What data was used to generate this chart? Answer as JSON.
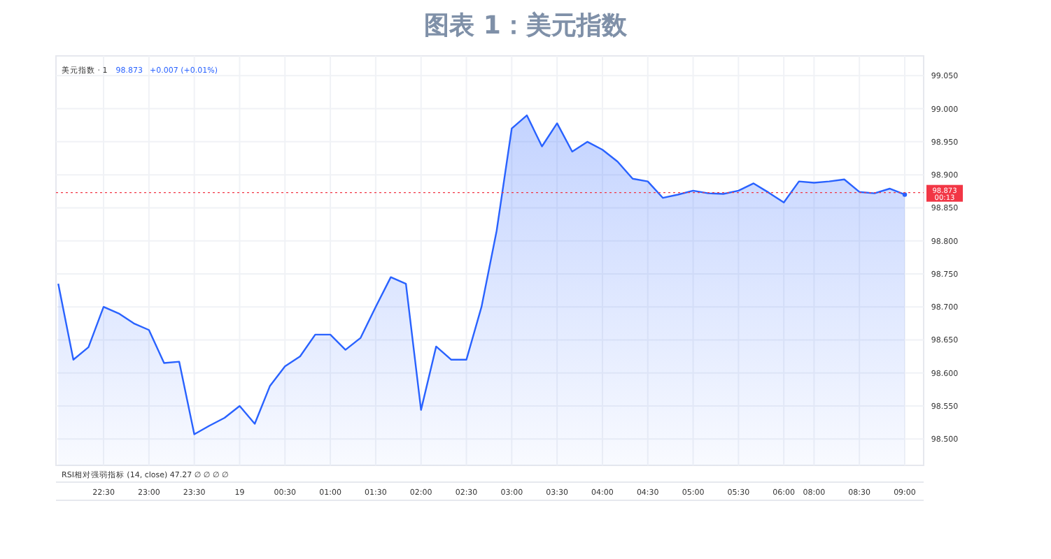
{
  "chart_data": {
    "type": "area",
    "title": "图表 1：美元指数",
    "subtitle": "美元指数 · 1",
    "annotations": [
      "98.873",
      "+0.007 (+0.01%)",
      "RSI相对强弱指标 (14, close) 47.27 ∅ ∅ ∅ ∅",
      "00:13"
    ],
    "categories": [
      null,
      null,
      null,
      "22:30",
      null,
      null,
      "23:00",
      null,
      null,
      "23:30",
      null,
      null,
      "19",
      null,
      null,
      "00:30",
      null,
      null,
      "01:00",
      null,
      null,
      "01:30",
      null,
      null,
      "02:00",
      null,
      null,
      "02:30",
      null,
      null,
      "03:00",
      null,
      null,
      "03:30",
      null,
      null,
      "04:00",
      null,
      null,
      "04:30",
      null,
      null,
      "05:00",
      null,
      null,
      "05:30",
      null,
      null,
      "06:00",
      null,
      "08:00",
      null,
      null,
      "08:30",
      null,
      null,
      "09:00"
    ],
    "series": [
      {
        "color": "#2962ff",
        "values": [
          98.735,
          98.62,
          98.639,
          98.7,
          98.69,
          98.675,
          98.665,
          98.615,
          98.617,
          98.507,
          98.52,
          98.532,
          98.55,
          98.523,
          98.58,
          98.61,
          98.625,
          98.658,
          98.658,
          98.635,
          98.653,
          98.7,
          98.745,
          98.735,
          98.544,
          98.64,
          98.62,
          98.62,
          98.7,
          98.815,
          98.97,
          98.99,
          98.943,
          98.978,
          98.935,
          98.95,
          98.938,
          98.92,
          98.894,
          98.89,
          98.865,
          98.87,
          98.876,
          98.872,
          98.871,
          98.876,
          98.887,
          98.873,
          98.858,
          98.89,
          98.888,
          98.89,
          98.893,
          98.874,
          98.872,
          98.879,
          98.87
        ]
      }
    ],
    "ylim": [
      98.46,
      99.08
    ],
    "yticks": [
      {
        "value": 98.5,
        "label": "98.500"
      },
      {
        "value": 98.55,
        "label": "98.550"
      },
      {
        "value": 98.6,
        "label": "98.600"
      },
      {
        "value": 98.65,
        "label": "98.650"
      },
      {
        "value": 98.7,
        "label": "98.700"
      },
      {
        "value": 98.75,
        "label": "98.750"
      },
      {
        "value": 98.8,
        "label": "98.800"
      },
      {
        "value": 98.85,
        "label": "98.850"
      },
      {
        "value": 98.9,
        "label": "98.900"
      },
      {
        "value": 98.95,
        "label": "98.950"
      },
      {
        "value": 99,
        "label": "99.000"
      },
      {
        "value": 99.05,
        "label": "99.050"
      }
    ],
    "ref_lines": [
      {
        "axis": "y",
        "value": 98.873,
        "label": "98.873",
        "color": "#f23645",
        "line_style": "dotted"
      }
    ],
    "grid": true,
    "line_style": "solid",
    "marker": "none"
  }
}
